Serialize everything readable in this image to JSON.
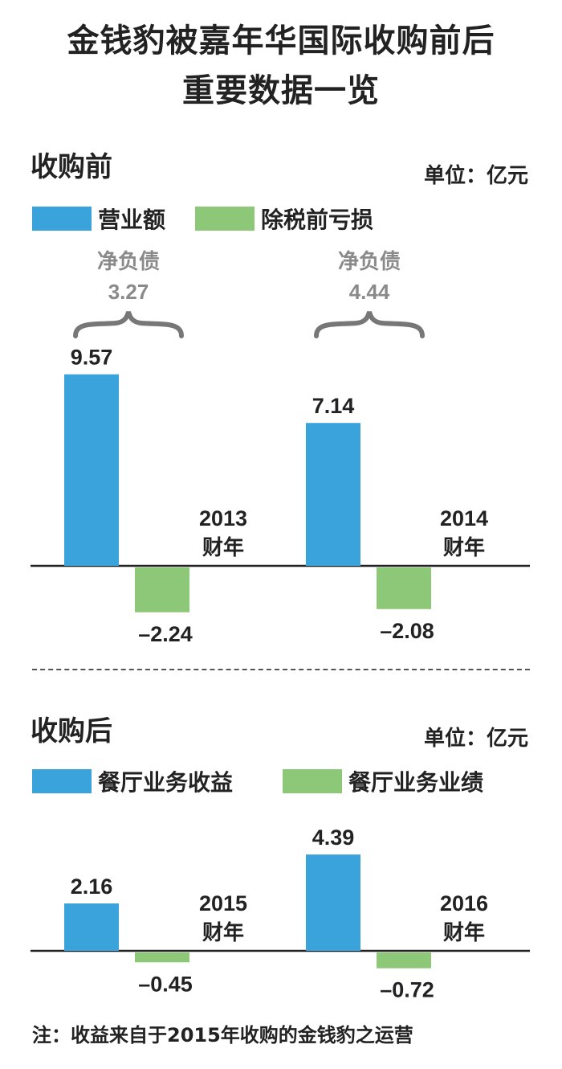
{
  "title": {
    "line1": "金钱豹被嘉年华国际收购前后",
    "line2": "重要数据一览"
  },
  "colors": {
    "blue": "#3aa3dc",
    "green": "#8cc878",
    "brace": "#777777",
    "label_gray": "#8a8a8a"
  },
  "note": "注：收益来自于2015年收购的金钱豹之运营",
  "chart_data": [
    {
      "type": "bar",
      "section_title": "收购前",
      "unit": "单位：亿元",
      "legend": [
        {
          "name": "营业额",
          "color": "#3aa3dc"
        },
        {
          "name": "除税前亏损",
          "color": "#8cc878"
        }
      ],
      "categories": [
        {
          "year": "2013",
          "suffix": "财年"
        },
        {
          "year": "2014",
          "suffix": "财年"
        }
      ],
      "series": [
        {
          "name": "营业额",
          "values": [
            9.57,
            7.14
          ],
          "labels": [
            "9.57",
            "7.14"
          ]
        },
        {
          "name": "除税前亏损",
          "values": [
            -2.24,
            -2.08
          ],
          "labels": [
            "–2.24",
            "–2.08"
          ]
        }
      ],
      "annotations": [
        {
          "label": "净负债",
          "value": "3.27"
        },
        {
          "label": "净负债",
          "value": "4.44"
        }
      ]
    },
    {
      "type": "bar",
      "section_title": "收购后",
      "unit": "单位：亿元",
      "legend": [
        {
          "name": "餐厅业务收益",
          "color": "#3aa3dc"
        },
        {
          "name": "餐厅业务业绩",
          "color": "#8cc878"
        }
      ],
      "categories": [
        {
          "year": "2015",
          "suffix": "财年"
        },
        {
          "year": "2016",
          "suffix": "财年"
        }
      ],
      "series": [
        {
          "name": "餐厅业务收益",
          "values": [
            2.16,
            4.39
          ],
          "labels": [
            "2.16",
            "4.39"
          ]
        },
        {
          "name": "餐厅业务业绩",
          "values": [
            -0.45,
            -0.72
          ],
          "labels": [
            "–0.45",
            "–0.72"
          ]
        }
      ]
    }
  ]
}
